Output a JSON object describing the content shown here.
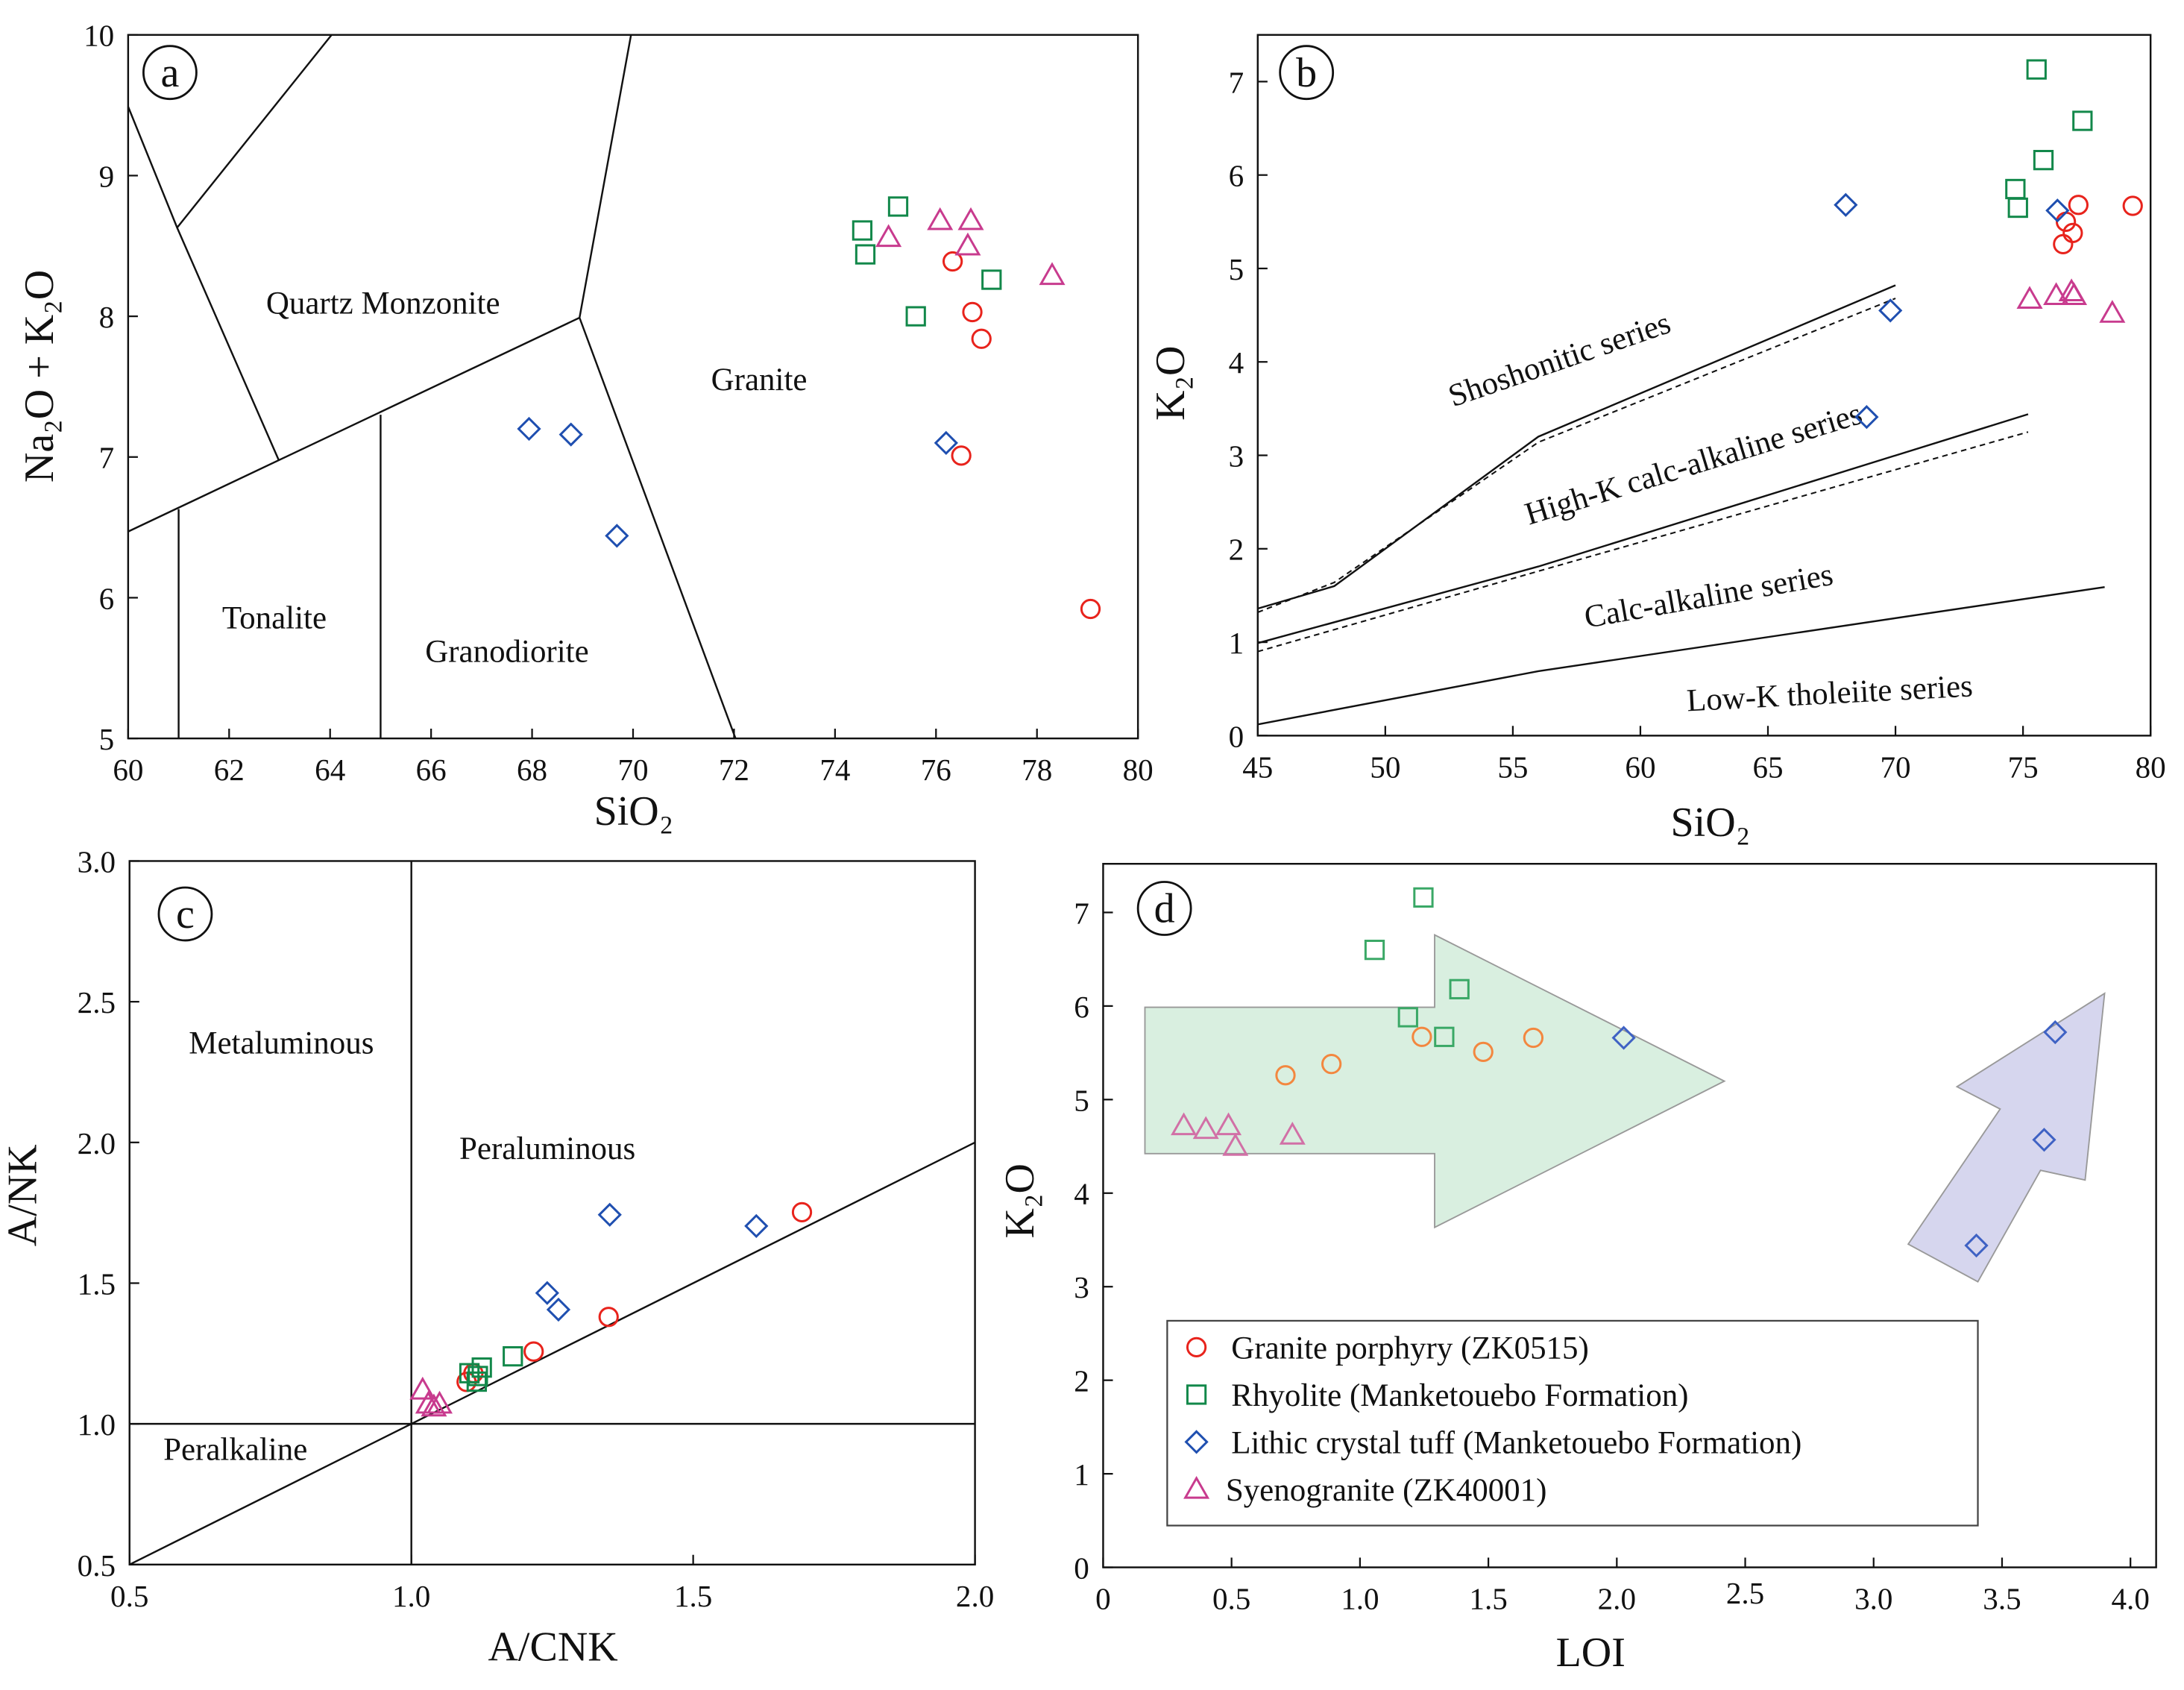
{
  "colors": {
    "granite_porphyry": "#e8231c",
    "rhyolite": "#12884a",
    "lithic_tuff": "#1f4fb0",
    "syenogranite": "#c83b8e",
    "granite_porphyry_light": "#f3873f",
    "rhyolite_light": "#3aa866",
    "lithic_tuff_light": "#3f62c4",
    "syenogranite_light": "#d170a6",
    "green_arrow": "#d9efe0",
    "purple_arrow": "#d6d6ee"
  },
  "legend": {
    "items": [
      {
        "label": "Granite porphyry (ZK0515)",
        "marker": "circle"
      },
      {
        "label": "Rhyolite (Manketouebo Formation)",
        "marker": "square"
      },
      {
        "label": "Lithic crystal tuff (Manketouebo Formation)",
        "marker": "diamond"
      },
      {
        "label": "Syenogranite (ZK40001)",
        "marker": "triangle"
      }
    ]
  },
  "chart_data": [
    {
      "panel": "a",
      "type": "scatter",
      "xlabel": "SiO₂",
      "ylabel": "Na₂O + K₂O",
      "xlim": [
        60,
        80
      ],
      "ylim": [
        5,
        10
      ],
      "xticks": [
        "60",
        "62",
        "64",
        "66",
        "68",
        "70",
        "72",
        "74",
        "76",
        "78",
        "80"
      ],
      "yticks": [
        "5",
        "6",
        "7",
        "8",
        "9",
        "10"
      ],
      "regions": [
        "Quartz Monzonite",
        "Granite",
        "Tonalite",
        "Granodiorite"
      ],
      "boundaries": [
        [
          [
            60,
            9.49
          ],
          [
            60.97,
            8.63
          ],
          [
            62.98,
            6.98
          ]
        ],
        [
          [
            60.97,
            8.63
          ],
          [
            64.03,
            10
          ]
        ],
        [
          [
            60,
            6.47
          ],
          [
            68.94,
            7.99
          ],
          [
            69.96,
            10
          ]
        ],
        [
          [
            68.94,
            7.99
          ],
          [
            72.03,
            5
          ]
        ],
        [
          [
            61,
            5
          ],
          [
            61,
            6.63
          ]
        ],
        [
          [
            65,
            5
          ],
          [
            65,
            7.3
          ]
        ]
      ],
      "series": [
        {
          "name": "Granite porphyry (ZK0515)",
          "marker": "circle",
          "points": [
            [
              76.33,
              8.39
            ],
            [
              76.72,
              8.03
            ],
            [
              76.9,
              7.84
            ],
            [
              76.5,
              7.01
            ],
            [
              79.06,
              5.92
            ]
          ]
        },
        {
          "name": "Rhyolite (Manketouebo Formation)",
          "marker": "square",
          "points": [
            [
              74.54,
              8.61
            ],
            [
              74.6,
              8.44
            ],
            [
              75.25,
              8.78
            ],
            [
              77.1,
              8.26
            ],
            [
              75.6,
              8.0
            ]
          ]
        },
        {
          "name": "Lithic crystal tuff (Manketouebo Formation)",
          "marker": "diamond",
          "points": [
            [
              67.94,
              7.2
            ],
            [
              68.77,
              7.16
            ],
            [
              69.68,
              6.44
            ],
            [
              76.2,
              7.1
            ]
          ]
        },
        {
          "name": "Syenogranite (ZK40001)",
          "marker": "triangle",
          "points": [
            [
              75.06,
              8.56
            ],
            [
              76.08,
              8.68
            ],
            [
              76.69,
              8.68
            ],
            [
              76.63,
              8.5
            ],
            [
              78.3,
              8.29
            ]
          ]
        }
      ]
    },
    {
      "panel": "b",
      "type": "scatter",
      "xlabel": "SiO₂",
      "ylabel": "K₂O",
      "xlim": [
        45,
        80
      ],
      "ylim": [
        0,
        7.5
      ],
      "xticks": [
        "45",
        "50",
        "55",
        "60",
        "65",
        "70",
        "75",
        "80"
      ],
      "yticks": [
        "0",
        "1",
        "2",
        "3",
        "4",
        "5",
        "6",
        "7"
      ],
      "regions": [
        "Shoshonitic series",
        "High-K calc-alkaline series",
        "Calc-alkaline series",
        "Low-K tholeiite series"
      ],
      "boundaries": [
        [
          [
            45,
            1.36
          ],
          [
            48,
            1.6
          ],
          [
            56,
            3.2
          ],
          [
            70,
            4.82
          ]
        ],
        [
          [
            45,
            0.99
          ],
          [
            56,
            1.81
          ],
          [
            75.2,
            3.44
          ]
        ],
        [
          [
            45,
            0.12
          ],
          [
            56,
            0.69
          ],
          [
            78.2,
            1.59
          ]
        ]
      ],
      "dashed_boundaries": [
        [
          [
            45,
            1.32
          ],
          [
            48,
            1.64
          ],
          [
            56,
            3.14
          ],
          [
            70,
            4.68
          ]
        ],
        [
          [
            45,
            0.9
          ],
          [
            56,
            1.76
          ],
          [
            75.2,
            3.25
          ]
        ]
      ],
      "series": [
        {
          "name": "Granite porphyry (ZK0515)",
          "marker": "circle",
          "points": [
            [
              77.17,
              5.68
            ],
            [
              79.3,
              5.67
            ],
            [
              76.68,
              5.5
            ],
            [
              76.95,
              5.38
            ],
            [
              76.57,
              5.26
            ]
          ]
        },
        {
          "name": "Rhyolite (Manketouebo Formation)",
          "marker": "square",
          "points": [
            [
              75.53,
              7.13
            ],
            [
              77.33,
              6.58
            ],
            [
              75.8,
              6.16
            ],
            [
              74.7,
              5.85
            ],
            [
              74.8,
              5.65
            ]
          ]
        },
        {
          "name": "Lithic crystal tuff (Manketouebo Formation)",
          "marker": "diamond",
          "points": [
            [
              68.05,
              5.68
            ],
            [
              76.35,
              5.62
            ],
            [
              69.8,
              4.55
            ],
            [
              68.87,
              3.41
            ]
          ]
        },
        {
          "name": "Syenogranite (ZK40001)",
          "marker": "triangle",
          "points": [
            [
              75.26,
              4.67
            ],
            [
              76.3,
              4.71
            ],
            [
              76.9,
              4.75
            ],
            [
              77.0,
              4.71
            ],
            [
              78.5,
              4.52
            ]
          ]
        }
      ]
    },
    {
      "panel": "c",
      "type": "scatter",
      "xlabel": "A/CNK",
      "ylabel": "A/NK",
      "xlim": [
        0.5,
        2.0
      ],
      "ylim": [
        0.5,
        3.0
      ],
      "xticks": [
        "0.5",
        "1.0",
        "1.5",
        "2.0"
      ],
      "yticks": [
        "0.5",
        "1.0",
        "1.5",
        "2.0",
        "2.5",
        "3.0"
      ],
      "regions": [
        "Metaluminous",
        "Peraluminous",
        "Peralkaline"
      ],
      "boundaries": [
        [
          [
            1.0,
            0.5
          ],
          [
            1.0,
            3.0
          ]
        ],
        [
          [
            0.5,
            1.0
          ],
          [
            2.0,
            1.0
          ]
        ],
        [
          [
            0.5,
            0.5
          ],
          [
            2.0,
            2.0
          ]
        ]
      ],
      "series": [
        {
          "name": "Granite porphyry (ZK0515)",
          "marker": "circle",
          "points": [
            [
              1.693,
              1.752
            ],
            [
              1.35,
              1.38
            ],
            [
              1.217,
              1.257
            ],
            [
              1.098,
              1.149
            ],
            [
              1.11,
              1.18
            ]
          ]
        },
        {
          "name": "Rhyolite (Manketouebo Formation)",
          "marker": "square",
          "points": [
            [
              1.103,
              1.18
            ],
            [
              1.118,
              1.17
            ],
            [
              1.125,
              1.2
            ],
            [
              1.18,
              1.24
            ],
            [
              1.116,
              1.15
            ]
          ]
        },
        {
          "name": "Lithic crystal tuff (Manketouebo Formation)",
          "marker": "diamond",
          "points": [
            [
              1.352,
              1.743
            ],
            [
              1.612,
              1.703
            ],
            [
              1.241,
              1.465
            ],
            [
              1.261,
              1.406
            ]
          ]
        },
        {
          "name": "Syenogranite (ZK40001)",
          "marker": "triangle",
          "points": [
            [
              1.02,
              1.12
            ],
            [
              1.03,
              1.07
            ],
            [
              1.04,
              1.06
            ],
            [
              1.05,
              1.07
            ]
          ]
        }
      ]
    },
    {
      "panel": "d",
      "type": "scatter",
      "xlabel": "LOI",
      "ylabel": "K₂O",
      "xlim": [
        0,
        4.1
      ],
      "ylim": [
        0,
        7.52
      ],
      "xticks": [
        "0",
        "0.5",
        "1.0",
        "1.5",
        "2.0",
        "2.5",
        "3.0",
        "3.5",
        "4.0"
      ],
      "yticks": [
        "0",
        "1",
        "2",
        "3",
        "4",
        "5",
        "6",
        "7"
      ],
      "series": [
        {
          "name": "Granite porphyry (ZK0515)",
          "marker": "circle",
          "points": [
            [
              1.241,
              5.67
            ],
            [
              1.675,
              5.66
            ],
            [
              1.48,
              5.51
            ],
            [
              0.889,
              5.38
            ],
            [
              0.71,
              5.26
            ]
          ]
        },
        {
          "name": "Rhyolite (Manketouebo Formation)",
          "marker": "square",
          "points": [
            [
              1.247,
              7.16
            ],
            [
              1.057,
              6.6
            ],
            [
              1.387,
              6.18
            ],
            [
              1.187,
              5.88
            ],
            [
              1.328,
              5.67
            ]
          ]
        },
        {
          "name": "Lithic crystal tuff (Manketouebo Formation)",
          "marker": "diamond",
          "points": [
            [
              2.027,
              5.66
            ],
            [
              3.707,
              5.72
            ],
            [
              3.664,
              4.57
            ],
            [
              3.4,
              3.44
            ]
          ]
        },
        {
          "name": "Syenogranite (ZK40001)",
          "marker": "triangle",
          "points": [
            [
              0.314,
              4.72
            ],
            [
              0.4,
              4.68
            ],
            [
              0.488,
              4.72
            ],
            [
              0.515,
              4.5
            ],
            [
              0.737,
              4.62
            ]
          ]
        }
      ]
    }
  ]
}
